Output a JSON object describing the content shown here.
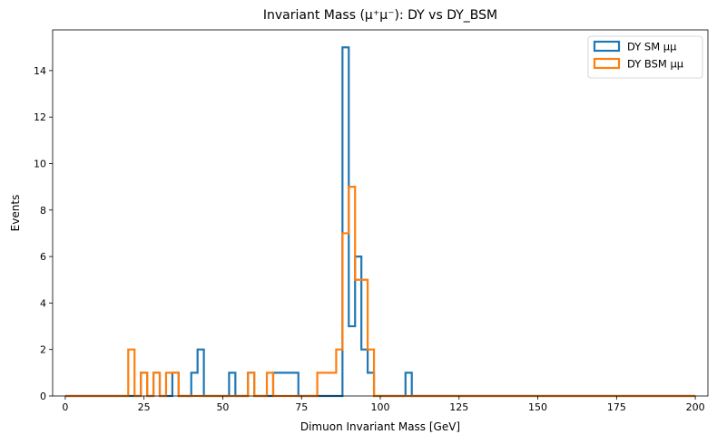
{
  "chart_data": {
    "type": "histogram",
    "title": "Invariant Mass (μ⁺μ⁻): DY vs DY_BSM",
    "xlabel": "Dimuon Invariant Mass [GeV]",
    "ylabel": "Events",
    "xlim": [
      -4,
      204
    ],
    "ylim": [
      0,
      15.75
    ],
    "bin_width": 2,
    "x_ticks": [
      0,
      25,
      50,
      75,
      100,
      125,
      150,
      175,
      200
    ],
    "y_ticks": [
      0,
      2,
      4,
      6,
      8,
      10,
      12,
      14
    ],
    "legend_position": "top-right",
    "grid": false,
    "series": [
      {
        "name": "DY SM μμ",
        "color": "#1f77b4",
        "bins": [
          {
            "x0": 24,
            "count": 1
          },
          {
            "x0": 28,
            "count": 1
          },
          {
            "x0": 34,
            "count": 1
          },
          {
            "x0": 40,
            "count": 1
          },
          {
            "x0": 42,
            "count": 2
          },
          {
            "x0": 52,
            "count": 1
          },
          {
            "x0": 58,
            "count": 1
          },
          {
            "x0": 66,
            "count": 1
          },
          {
            "x0": 68,
            "count": 1
          },
          {
            "x0": 70,
            "count": 1
          },
          {
            "x0": 72,
            "count": 1
          },
          {
            "x0": 88,
            "count": 15
          },
          {
            "x0": 90,
            "count": 3
          },
          {
            "x0": 92,
            "count": 6
          },
          {
            "x0": 94,
            "count": 2
          },
          {
            "x0": 96,
            "count": 1
          },
          {
            "x0": 108,
            "count": 1
          }
        ]
      },
      {
        "name": "DY BSM μμ",
        "color": "#ff7f0e",
        "bins": [
          {
            "x0": 20,
            "count": 2
          },
          {
            "x0": 24,
            "count": 1
          },
          {
            "x0": 28,
            "count": 1
          },
          {
            "x0": 32,
            "count": 1
          },
          {
            "x0": 34,
            "count": 1
          },
          {
            "x0": 58,
            "count": 1
          },
          {
            "x0": 64,
            "count": 1
          },
          {
            "x0": 80,
            "count": 1
          },
          {
            "x0": 82,
            "count": 1
          },
          {
            "x0": 84,
            "count": 1
          },
          {
            "x0": 86,
            "count": 2
          },
          {
            "x0": 88,
            "count": 7
          },
          {
            "x0": 90,
            "count": 9
          },
          {
            "x0": 92,
            "count": 5
          },
          {
            "x0": 94,
            "count": 5
          },
          {
            "x0": 96,
            "count": 2
          }
        ]
      }
    ]
  }
}
